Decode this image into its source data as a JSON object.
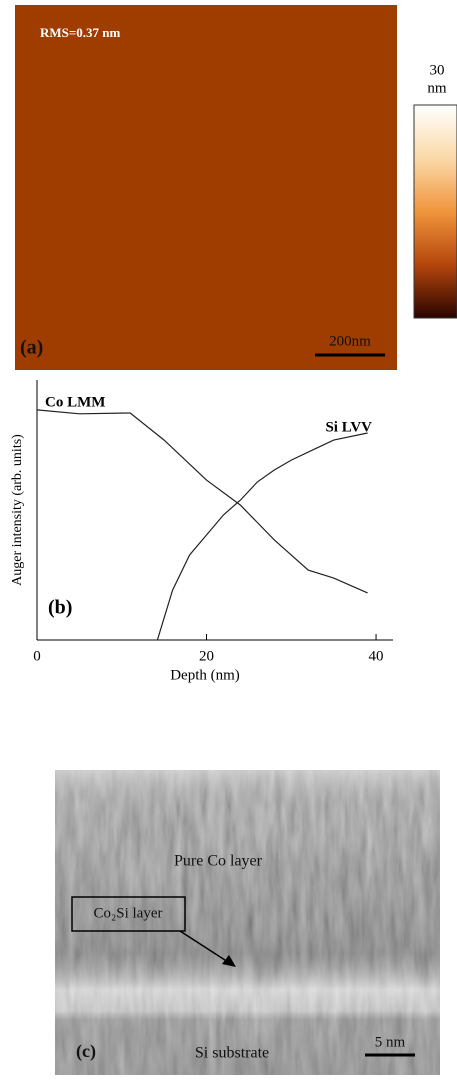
{
  "panel_a": {
    "rms": "RMS=0.37 nm",
    "label": "(a)",
    "scale_bar": "200nm",
    "colorbar_max": "30",
    "colorbar_unit": "nm"
  },
  "chart_data": {
    "type": "line",
    "label": "(b)",
    "xlabel": "Depth (nm)",
    "ylabel": "Auger intensity (arb. units)",
    "xlim": [
      0,
      42
    ],
    "xticks": [
      0,
      20,
      40
    ],
    "ylim": [
      0,
      10
    ],
    "series": [
      {
        "name": "Co LMM",
        "color": "#222222",
        "x": [
          0,
          5,
          11,
          15,
          20,
          24,
          28,
          32,
          35,
          39
        ],
        "values": [
          8.85,
          8.7,
          8.73,
          7.69,
          6.15,
          5.19,
          3.85,
          2.69,
          2.38,
          1.81
        ]
      },
      {
        "name": "Si LVV",
        "color": "#222222",
        "x": [
          14.2,
          16,
          18,
          20,
          22,
          24,
          26,
          28,
          30,
          33,
          35,
          39
        ],
        "values": [
          0,
          1.92,
          3.27,
          4.04,
          4.81,
          5.38,
          6.08,
          6.54,
          6.92,
          7.38,
          7.69,
          7.96
        ]
      }
    ]
  },
  "panel_c": {
    "top_layer": "Pure Co layer",
    "interface_layer": "Co₂Si layer",
    "substrate": "Si substrate",
    "label": "(c)",
    "scale_bar": "5 nm"
  }
}
